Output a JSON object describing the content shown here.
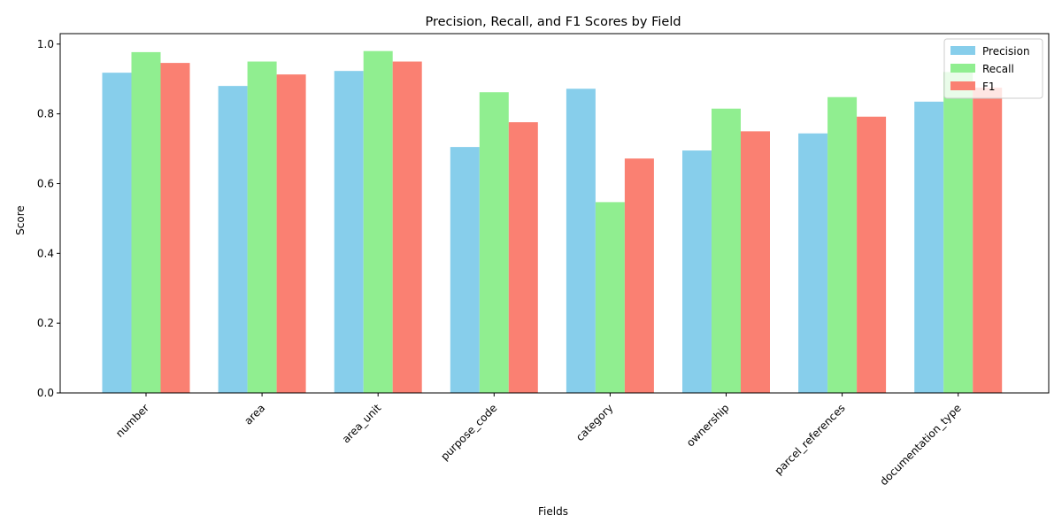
{
  "chart_data": {
    "type": "bar",
    "title": "Precision, Recall, and F1 Scores by Field",
    "xlabel": "Fields",
    "ylabel": "Score",
    "ylim": [
      0,
      1.03
    ],
    "yticks": [
      "0.0",
      "0.2",
      "0.4",
      "0.6",
      "0.8",
      "1.0"
    ],
    "grid": false,
    "legend_position": "top-right",
    "categories": [
      "number",
      "area",
      "area_unit",
      "purpose_code",
      "category",
      "ownership",
      "parcel_references",
      "documentation_type"
    ],
    "series": [
      {
        "name": "Precision",
        "color": "#87ceeb",
        "values": [
          0.918,
          0.88,
          0.923,
          0.705,
          0.872,
          0.695,
          0.744,
          0.835
        ]
      },
      {
        "name": "Recall",
        "color": "#90ee90",
        "values": [
          0.977,
          0.95,
          0.98,
          0.862,
          0.547,
          0.815,
          0.848,
          0.92
        ]
      },
      {
        "name": "F1",
        "color": "#fa8072",
        "values": [
          0.946,
          0.913,
          0.95,
          0.776,
          0.672,
          0.75,
          0.792,
          0.875
        ]
      }
    ]
  }
}
